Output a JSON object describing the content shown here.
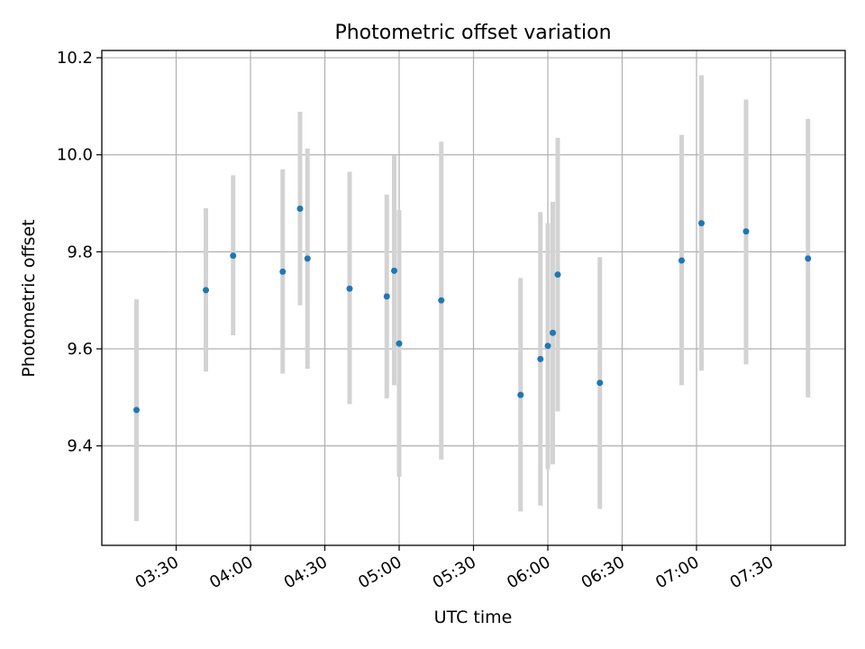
{
  "chart_data": {
    "type": "scatter",
    "title": "Photometric offset variation",
    "xlabel": "UTC time",
    "ylabel": "Photometric offset",
    "xlim": [
      "03:00",
      "08:00"
    ],
    "ylim": [
      9.195,
      10.215
    ],
    "x_ticks": [
      "03:30",
      "04:00",
      "04:30",
      "05:00",
      "05:30",
      "06:00",
      "06:30",
      "07:00",
      "07:30"
    ],
    "y_ticks": [
      9.4,
      9.6,
      9.8,
      10.0,
      10.2
    ],
    "y_tick_labels": [
      "9.4",
      "9.6",
      "9.8",
      "10.0",
      "10.2"
    ],
    "grid": true,
    "point_color": "#1f77b4",
    "errorbar_color": "#d3d3d3",
    "points": [
      {
        "t": "03:14",
        "y": 9.474,
        "lo": 9.245,
        "hi": 9.702
      },
      {
        "t": "03:42",
        "y": 9.721,
        "lo": 9.553,
        "hi": 9.89
      },
      {
        "t": "03:53",
        "y": 9.792,
        "lo": 9.628,
        "hi": 9.958
      },
      {
        "t": "04:13",
        "y": 9.759,
        "lo": 9.549,
        "hi": 9.97
      },
      {
        "t": "04:20",
        "y": 9.889,
        "lo": 9.69,
        "hi": 10.089
      },
      {
        "t": "04:23",
        "y": 9.786,
        "lo": 9.559,
        "hi": 10.013
      },
      {
        "t": "04:40",
        "y": 9.724,
        "lo": 9.486,
        "hi": 9.965
      },
      {
        "t": "04:55",
        "y": 9.708,
        "lo": 9.498,
        "hi": 9.918
      },
      {
        "t": "04:58",
        "y": 9.761,
        "lo": 9.525,
        "hi": 9.999
      },
      {
        "t": "05:00",
        "y": 9.611,
        "lo": 9.336,
        "hi": 9.886
      },
      {
        "t": "05:17",
        "y": 9.7,
        "lo": 9.372,
        "hi": 10.027
      },
      {
        "t": "05:49",
        "y": 9.505,
        "lo": 9.265,
        "hi": 9.746
      },
      {
        "t": "05:57",
        "y": 9.579,
        "lo": 9.277,
        "hi": 9.882
      },
      {
        "t": "06:00",
        "y": 9.606,
        "lo": 9.352,
        "hi": 9.859
      },
      {
        "t": "06:02",
        "y": 9.633,
        "lo": 9.362,
        "hi": 9.903
      },
      {
        "t": "06:04",
        "y": 9.753,
        "lo": 9.471,
        "hi": 10.035
      },
      {
        "t": "06:21",
        "y": 9.53,
        "lo": 9.27,
        "hi": 9.789
      },
      {
        "t": "06:54",
        "y": 9.782,
        "lo": 9.525,
        "hi": 10.041
      },
      {
        "t": "07:02",
        "y": 9.859,
        "lo": 9.555,
        "hi": 10.164
      },
      {
        "t": "07:20",
        "y": 9.842,
        "lo": 9.568,
        "hi": 10.114
      },
      {
        "t": "07:45",
        "y": 9.786,
        "lo": 9.5,
        "hi": 10.074
      }
    ]
  }
}
